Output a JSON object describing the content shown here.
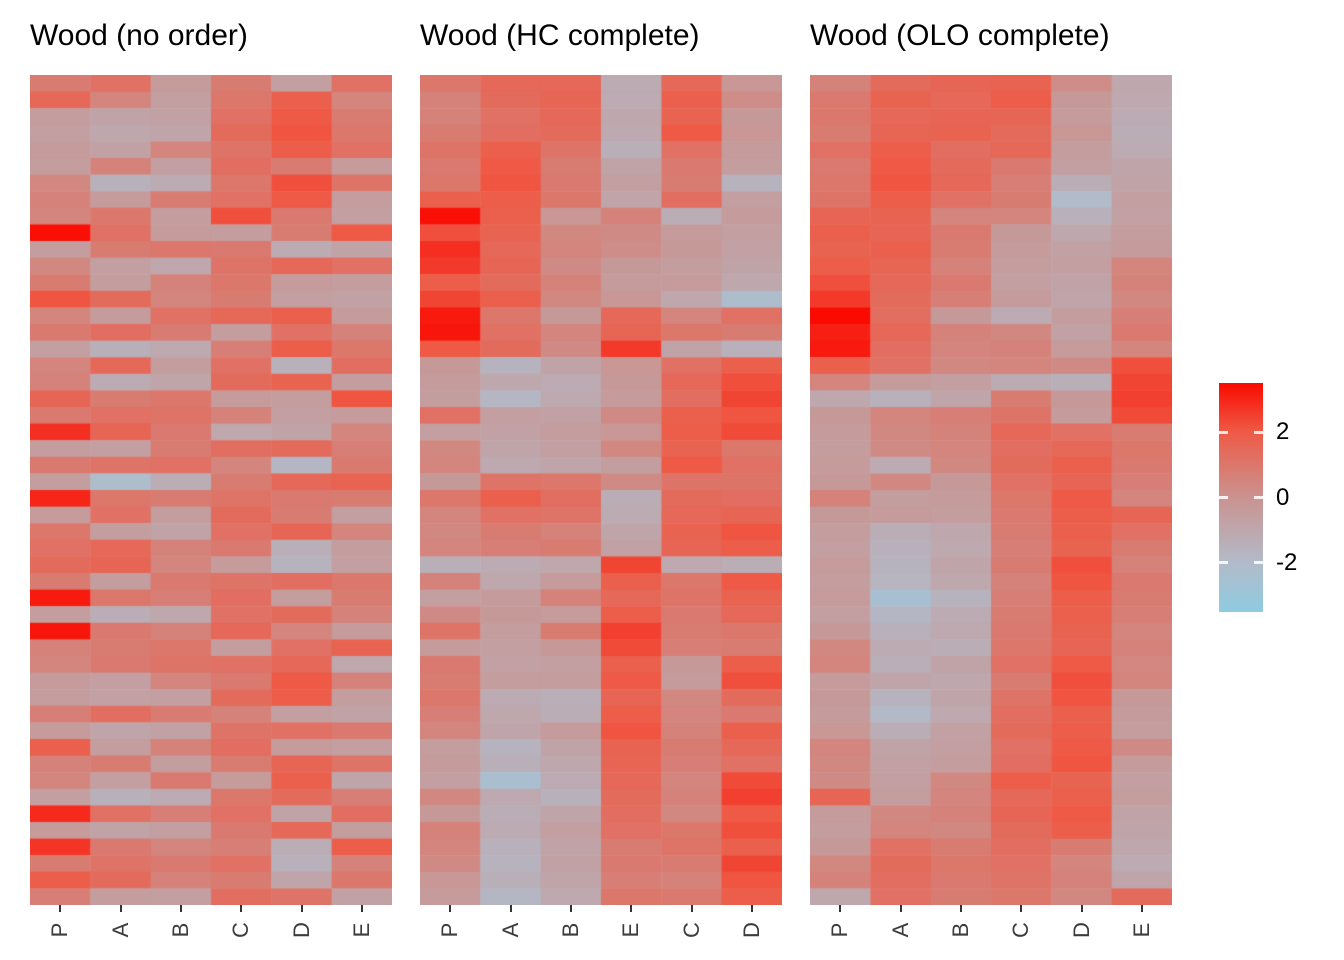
{
  "page": {
    "background": "#ffffff"
  },
  "chart_data": [
    {
      "type": "heatmap",
      "title": "Wood (no order)",
      "columns": [
        "P",
        "A",
        "B",
        "C",
        "D",
        "E"
      ],
      "value_domain": [
        -3.5,
        3.5
      ],
      "values": [
        [
          0.8,
          1.2,
          -0.4,
          0.8,
          -0.6,
          1.2
        ],
        [
          1.5,
          0.5,
          -0.6,
          1.0,
          1.8,
          0.5
        ],
        [
          -0.5,
          -0.8,
          -0.7,
          1.2,
          2.0,
          0.8
        ],
        [
          -0.6,
          -1.0,
          -0.9,
          1.4,
          2.1,
          1.0
        ],
        [
          -0.4,
          -0.7,
          0.5,
          1.1,
          1.9,
          1.2
        ],
        [
          -0.5,
          0.6,
          -0.6,
          1.3,
          0.8,
          -0.4
        ],
        [
          0.4,
          -1.5,
          -1.2,
          1.0,
          2.2,
          1.1
        ],
        [
          0.6,
          -0.4,
          0.8,
          1.2,
          2.0,
          -0.5
        ],
        [
          0.5,
          1.0,
          -0.5,
          2.2,
          0.9,
          -0.6
        ],
        [
          3.4,
          1.2,
          -0.4,
          -0.5,
          0.8,
          2.0
        ],
        [
          -0.5,
          0.8,
          1.0,
          0.9,
          -1.2,
          -0.8
        ],
        [
          0.4,
          -0.6,
          -1.0,
          1.1,
          1.5,
          1.2
        ],
        [
          0.8,
          -0.5,
          0.6,
          1.0,
          -0.4,
          -0.5
        ],
        [
          2.1,
          1.4,
          0.5,
          0.8,
          -0.6,
          -0.7
        ],
        [
          0.5,
          -0.4,
          1.2,
          1.5,
          1.8,
          -0.4
        ],
        [
          0.9,
          1.3,
          0.8,
          -0.5,
          1.2,
          0.6
        ],
        [
          -0.6,
          -1.4,
          -1.1,
          0.7,
          1.9,
          1.0
        ],
        [
          0.5,
          1.5,
          -0.5,
          1.2,
          -1.5,
          1.3
        ],
        [
          0.6,
          -1.2,
          -0.9,
          1.4,
          1.7,
          -0.5
        ],
        [
          1.6,
          0.8,
          1.0,
          -0.4,
          -0.5,
          2.1
        ],
        [
          0.9,
          1.2,
          1.1,
          0.6,
          -0.6,
          -0.4
        ],
        [
          2.8,
          1.6,
          0.9,
          -1.0,
          -0.8,
          0.5
        ],
        [
          -0.5,
          -0.6,
          0.8,
          1.3,
          1.4,
          0.7
        ],
        [
          0.9,
          1.1,
          1.2,
          0.5,
          -1.8,
          0.9
        ],
        [
          -0.5,
          -2.2,
          -1.3,
          0.8,
          1.5,
          1.7
        ],
        [
          3.0,
          1.0,
          0.8,
          1.1,
          0.9,
          0.8
        ],
        [
          -0.4,
          1.2,
          -0.5,
          1.4,
          0.8,
          -0.6
        ],
        [
          1.0,
          -0.5,
          -0.8,
          1.2,
          1.6,
          0.5
        ],
        [
          1.2,
          1.5,
          0.6,
          0.9,
          -1.4,
          -0.5
        ],
        [
          1.4,
          1.6,
          0.5,
          -0.4,
          -1.6,
          -0.6
        ],
        [
          0.8,
          -0.5,
          0.9,
          1.1,
          1.3,
          1.0
        ],
        [
          3.2,
          1.0,
          0.7,
          1.3,
          -0.5,
          0.8
        ],
        [
          -0.5,
          -1.3,
          -1.0,
          1.2,
          1.4,
          0.6
        ],
        [
          3.3,
          0.9,
          0.6,
          1.5,
          0.5,
          -0.4
        ],
        [
          0.6,
          0.8,
          1.0,
          -0.5,
          1.2,
          1.7
        ],
        [
          0.5,
          0.9,
          1.1,
          1.2,
          1.5,
          -1.0
        ],
        [
          -0.4,
          -0.6,
          0.5,
          0.9,
          2.0,
          0.6
        ],
        [
          -0.5,
          -0.7,
          -0.6,
          1.4,
          1.9,
          -0.5
        ],
        [
          0.7,
          1.3,
          0.8,
          0.6,
          -0.6,
          -0.8
        ],
        [
          -0.4,
          -0.9,
          -0.7,
          1.1,
          1.2,
          0.9
        ],
        [
          1.8,
          -0.5,
          0.6,
          1.3,
          -0.4,
          -0.6
        ],
        [
          0.6,
          0.8,
          -0.5,
          0.8,
          1.6,
          1.1
        ],
        [
          0.5,
          -0.6,
          0.9,
          -0.4,
          1.8,
          -0.9
        ],
        [
          -0.6,
          -1.5,
          -1.2,
          1.0,
          1.4,
          0.7
        ],
        [
          2.9,
          1.2,
          0.7,
          1.2,
          -0.8,
          1.3
        ],
        [
          -0.4,
          -0.8,
          -0.6,
          0.9,
          1.5,
          -0.5
        ],
        [
          2.7,
          0.9,
          0.5,
          0.7,
          -1.3,
          1.9
        ],
        [
          0.8,
          1.1,
          0.9,
          1.2,
          -1.5,
          0.6
        ],
        [
          1.9,
          1.4,
          0.6,
          0.8,
          -0.9,
          1.0
        ],
        [
          0.7,
          -0.5,
          -0.6,
          1.3,
          1.1,
          -0.7
        ]
      ]
    },
    {
      "type": "heatmap",
      "title": "Wood (HC complete)",
      "columns": [
        "P",
        "A",
        "B",
        "E",
        "C",
        "D"
      ],
      "value_domain": [
        -3.5,
        3.5
      ],
      "values": [
        [
          1.0,
          1.5,
          1.5,
          -1.2,
          1.5,
          -0.2
        ],
        [
          0.6,
          1.4,
          1.6,
          -1.2,
          1.8,
          0.2
        ],
        [
          0.6,
          1.2,
          1.5,
          -1.0,
          1.7,
          -0.3
        ],
        [
          0.8,
          1.3,
          1.4,
          -1.1,
          2.0,
          -0.2
        ],
        [
          1.1,
          1.8,
          1.1,
          -1.4,
          1.2,
          -0.4
        ],
        [
          0.9,
          2.0,
          0.8,
          -0.8,
          0.9,
          -0.5
        ],
        [
          1.0,
          2.1,
          0.9,
          -0.6,
          0.8,
          -1.6
        ],
        [
          1.8,
          1.9,
          1.0,
          -0.9,
          1.3,
          -0.6
        ],
        [
          3.4,
          1.8,
          -0.2,
          0.6,
          -1.3,
          -0.4
        ],
        [
          2.2,
          1.7,
          0.4,
          0.3,
          -0.4,
          -0.6
        ],
        [
          2.8,
          1.5,
          0.5,
          0.2,
          -0.3,
          -0.7
        ],
        [
          2.6,
          1.6,
          0.3,
          -0.3,
          -0.5,
          -0.8
        ],
        [
          1.9,
          1.4,
          0.6,
          -0.4,
          -0.4,
          -1.0
        ],
        [
          2.4,
          1.8,
          0.4,
          -0.2,
          -1.0,
          -2.2
        ],
        [
          3.2,
          1.0,
          -0.3,
          1.5,
          0.5,
          1.2
        ],
        [
          3.3,
          1.2,
          0.5,
          1.6,
          1.0,
          0.8
        ],
        [
          2.0,
          1.4,
          0.3,
          2.6,
          -0.8,
          -1.5
        ],
        [
          -0.3,
          -1.6,
          -0.8,
          -0.2,
          1.2,
          1.8
        ],
        [
          -0.4,
          -1.0,
          -1.2,
          -0.3,
          1.5,
          2.2
        ],
        [
          -0.5,
          -1.8,
          -1.1,
          -0.4,
          1.3,
          2.4
        ],
        [
          1.2,
          -0.6,
          -0.7,
          0.3,
          1.8,
          2.1
        ],
        [
          -0.6,
          -0.7,
          -0.5,
          -0.2,
          1.9,
          2.3
        ],
        [
          0.4,
          -0.9,
          -0.6,
          0.4,
          1.7,
          1.0
        ],
        [
          0.5,
          -1.1,
          -0.9,
          -0.5,
          2.0,
          1.2
        ],
        [
          -0.3,
          1.1,
          1.0,
          0.3,
          1.1,
          1.1
        ],
        [
          1.0,
          1.8,
          1.3,
          -1.3,
          1.4,
          1.3
        ],
        [
          0.5,
          1.2,
          1.1,
          -1.2,
          1.5,
          1.6
        ],
        [
          0.4,
          0.8,
          0.6,
          -0.9,
          1.7,
          2.1
        ],
        [
          0.5,
          0.7,
          0.8,
          -0.7,
          1.6,
          1.9
        ],
        [
          -1.4,
          -1.2,
          -1.0,
          2.4,
          -1.1,
          -1.3
        ],
        [
          0.6,
          -1.0,
          -0.4,
          1.8,
          1.0,
          2.0
        ],
        [
          -0.6,
          -0.4,
          0.6,
          1.5,
          1.1,
          1.7
        ],
        [
          0.3,
          -0.3,
          -0.4,
          1.9,
          0.9,
          1.5
        ],
        [
          1.1,
          -0.5,
          0.8,
          2.5,
          0.8,
          1.0
        ],
        [
          -0.4,
          -0.6,
          -0.3,
          2.3,
          0.7,
          0.8
        ],
        [
          0.9,
          -0.7,
          -0.6,
          1.8,
          -0.3,
          1.9
        ],
        [
          0.8,
          -0.5,
          -0.5,
          2.0,
          -0.4,
          2.2
        ],
        [
          1.0,
          -1.2,
          -1.4,
          1.6,
          0.4,
          1.4
        ],
        [
          0.7,
          -1.0,
          -1.3,
          1.9,
          0.5,
          0.9
        ],
        [
          0.5,
          -0.9,
          -0.4,
          2.1,
          0.6,
          1.8
        ],
        [
          -0.5,
          -1.6,
          -0.8,
          1.7,
          0.8,
          1.5
        ],
        [
          -0.4,
          -1.4,
          -1.0,
          1.6,
          0.7,
          1.2
        ],
        [
          -0.6,
          -2.4,
          -1.2,
          1.5,
          0.5,
          2.3
        ],
        [
          0.4,
          -1.1,
          -1.5,
          1.4,
          0.6,
          2.5
        ],
        [
          -0.3,
          -1.3,
          -0.9,
          1.3,
          0.4,
          2.0
        ],
        [
          0.6,
          -1.2,
          -0.6,
          1.2,
          1.0,
          2.2
        ],
        [
          0.5,
          -1.5,
          -0.8,
          0.8,
          1.1,
          1.8
        ],
        [
          0.3,
          -1.6,
          -0.7,
          0.9,
          0.8,
          2.4
        ],
        [
          -0.2,
          -1.4,
          -0.9,
          0.7,
          0.6,
          2.1
        ],
        [
          -0.4,
          -1.8,
          -1.1,
          1.0,
          0.9,
          1.9
        ]
      ]
    },
    {
      "type": "heatmap",
      "title": "Wood (OLO complete)",
      "columns": [
        "P",
        "A",
        "B",
        "C",
        "D",
        "E"
      ],
      "value_domain": [
        -3.5,
        3.5
      ],
      "values": [
        [
          0.6,
          1.4,
          1.6,
          1.7,
          0.2,
          -1.0
        ],
        [
          0.9,
          1.7,
          1.5,
          1.9,
          -0.3,
          -1.1
        ],
        [
          1.0,
          1.5,
          1.6,
          1.6,
          -0.4,
          -1.2
        ],
        [
          0.8,
          1.6,
          1.7,
          1.4,
          -0.2,
          -1.3
        ],
        [
          1.2,
          1.9,
          1.3,
          1.5,
          -0.5,
          -1.2
        ],
        [
          0.9,
          2.0,
          1.4,
          0.9,
          -0.6,
          -0.9
        ],
        [
          1.0,
          2.1,
          1.5,
          0.7,
          -1.3,
          -0.8
        ],
        [
          1.1,
          1.9,
          1.2,
          0.8,
          -2.0,
          -0.6
        ],
        [
          1.6,
          1.7,
          0.5,
          0.5,
          -1.5,
          -0.7
        ],
        [
          1.8,
          1.6,
          0.9,
          -0.3,
          -1.0,
          -0.5
        ],
        [
          1.7,
          1.8,
          0.8,
          -0.4,
          -0.7,
          -0.4
        ],
        [
          1.9,
          1.6,
          0.6,
          -0.5,
          -0.6,
          0.5
        ],
        [
          2.2,
          1.5,
          0.9,
          -0.6,
          -0.8,
          0.6
        ],
        [
          2.6,
          1.4,
          0.7,
          -0.4,
          -0.9,
          0.4
        ],
        [
          3.5,
          1.3,
          -0.3,
          -1.2,
          -0.5,
          0.7
        ],
        [
          3.1,
          1.5,
          0.6,
          0.4,
          -0.7,
          0.9
        ],
        [
          3.2,
          1.3,
          0.5,
          0.6,
          -0.4,
          0.5
        ],
        [
          1.8,
          1.2,
          0.4,
          0.5,
          0.3,
          2.2
        ],
        [
          0.5,
          -0.4,
          -0.6,
          -1.2,
          -1.4,
          2.4
        ],
        [
          -1.0,
          -1.5,
          -0.9,
          0.8,
          -0.3,
          2.5
        ],
        [
          -0.3,
          0.5,
          0.7,
          1.1,
          -0.4,
          2.3
        ],
        [
          -0.4,
          0.4,
          0.6,
          1.5,
          1.2,
          0.8
        ],
        [
          -0.5,
          0.3,
          0.5,
          1.3,
          1.5,
          1.0
        ],
        [
          -0.4,
          -1.2,
          0.4,
          1.4,
          1.8,
          0.9
        ],
        [
          -0.3,
          0.4,
          -0.3,
          1.2,
          1.6,
          0.7
        ],
        [
          0.6,
          -0.5,
          -0.4,
          1.0,
          2.0,
          0.5
        ],
        [
          -0.3,
          -0.4,
          -0.5,
          0.9,
          1.9,
          1.6
        ],
        [
          -0.5,
          -1.3,
          -1.0,
          0.8,
          1.8,
          1.2
        ],
        [
          -0.6,
          -1.5,
          -1.1,
          0.7,
          1.7,
          0.8
        ],
        [
          -0.4,
          -1.6,
          -0.9,
          0.8,
          2.2,
          0.6
        ],
        [
          -0.5,
          -1.7,
          -1.0,
          0.6,
          2.1,
          0.9
        ],
        [
          -0.4,
          -2.5,
          -1.6,
          0.7,
          1.9,
          0.8
        ],
        [
          -0.6,
          -1.8,
          -1.2,
          0.8,
          1.8,
          0.7
        ],
        [
          -0.3,
          -1.5,
          -1.1,
          0.9,
          1.7,
          0.5
        ],
        [
          0.4,
          -1.2,
          -1.3,
          1.0,
          1.6,
          0.6
        ],
        [
          0.5,
          -1.4,
          -0.8,
          1.2,
          2.0,
          0.4
        ],
        [
          -0.4,
          -0.9,
          -1.0,
          0.8,
          2.2,
          0.5
        ],
        [
          -0.3,
          -1.6,
          -0.9,
          1.1,
          2.1,
          -0.3
        ],
        [
          -0.4,
          -1.9,
          -1.1,
          1.3,
          1.8,
          -0.4
        ],
        [
          -0.2,
          -1.3,
          -0.7,
          1.4,
          1.9,
          -0.5
        ],
        [
          0.5,
          -0.8,
          -0.6,
          1.2,
          2.0,
          0.3
        ],
        [
          0.4,
          -0.7,
          -0.5,
          1.3,
          2.1,
          -0.4
        ],
        [
          0.3,
          -0.6,
          0.4,
          1.9,
          1.7,
          -0.6
        ],
        [
          1.6,
          -0.5,
          0.5,
          1.5,
          1.8,
          -0.5
        ],
        [
          -0.4,
          0.4,
          0.6,
          1.6,
          2.0,
          -0.8
        ],
        [
          -0.5,
          0.5,
          0.4,
          1.4,
          1.9,
          -0.9
        ],
        [
          -0.3,
          1.2,
          0.8,
          1.3,
          0.8,
          -1.0
        ],
        [
          0.4,
          1.4,
          1.0,
          1.2,
          0.5,
          -1.2
        ],
        [
          0.6,
          1.3,
          0.9,
          1.1,
          0.6,
          -0.9
        ],
        [
          -1.0,
          1.2,
          0.8,
          1.0,
          0.4,
          1.4
        ]
      ]
    }
  ],
  "legend": {
    "ticks": [
      "2",
      "0",
      "-2"
    ],
    "tick_values": [
      2,
      0,
      -2
    ],
    "domain": [
      -3.5,
      3.5
    ],
    "color_stops": [
      {
        "value": 3.5,
        "color": "#FA0A00"
      },
      {
        "value": 2.0,
        "color": "#EE5A46"
      },
      {
        "value": 0.0,
        "color": "#CA9390"
      },
      {
        "value": -2.0,
        "color": "#B2BBC9"
      },
      {
        "value": -3.5,
        "color": "#8FCBE2"
      }
    ]
  }
}
